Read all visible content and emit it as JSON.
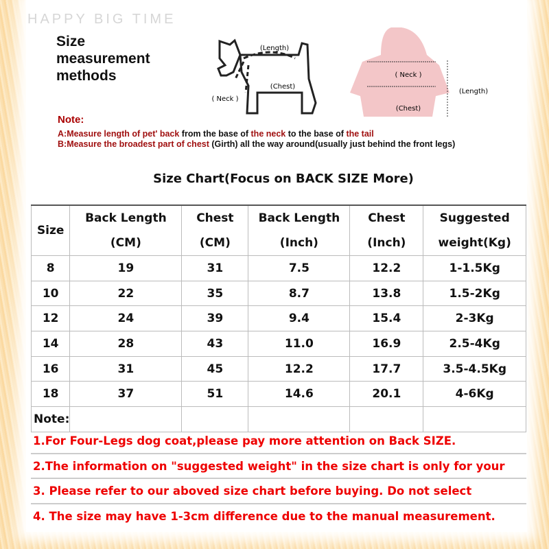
{
  "watermark": "HAPPY BIG TIME",
  "heading": [
    "Size",
    "measurement",
    "methods"
  ],
  "diagram_labels": {
    "length": "(Length)",
    "neck": "( Neck )",
    "chest": "(Chest)"
  },
  "note": {
    "title": "Note:",
    "a": [
      "A:Measure ",
      "length of pet' back",
      " from the base of ",
      "the neck",
      " to the base of ",
      "the tail"
    ],
    "b": [
      "B:Measure ",
      "the broadest part of chest",
      " (Girth) all the way around(usually just behind the front legs)"
    ]
  },
  "chart_title": "Size Chart(Focus on BACK SIZE More)",
  "table": {
    "headers": [
      "Size",
      "Back Length (CM)",
      "Chest (CM)",
      "Back Length (Inch)",
      "Chest (Inch)",
      "Suggested weight(Kg)"
    ],
    "rows": [
      [
        "8",
        "19",
        "31",
        "7.5",
        "12.2",
        "1-1.5Kg"
      ],
      [
        "10",
        "22",
        "35",
        "8.7",
        "13.8",
        "1.5-2Kg"
      ],
      [
        "12",
        "24",
        "39",
        "9.4",
        "15.4",
        "2-3Kg"
      ],
      [
        "14",
        "28",
        "43",
        "11.0",
        "16.9",
        "2.5-4Kg"
      ],
      [
        "16",
        "31",
        "45",
        "12.2",
        "17.7",
        "3.5-4.5Kg"
      ],
      [
        "18",
        "37",
        "51",
        "14.6",
        "20.1",
        "4-6Kg"
      ]
    ],
    "note_label": "Note:"
  },
  "notes": [
    "1.For Four-Legs dog coat,please pay more attention on Back SIZE.",
    "2.The information on \"suggested weight\" in the size chart is only for your",
    "3. Please refer to our aboved size chart before buying. Do not select",
    "4. The size may have 1-3cm difference due to the manual measurement."
  ],
  "colors": {
    "note_red": "#e00000",
    "dark_red": "#a01010",
    "hoodie_pink": "#f3c6c8",
    "border_orange": "#fbd9a0"
  }
}
